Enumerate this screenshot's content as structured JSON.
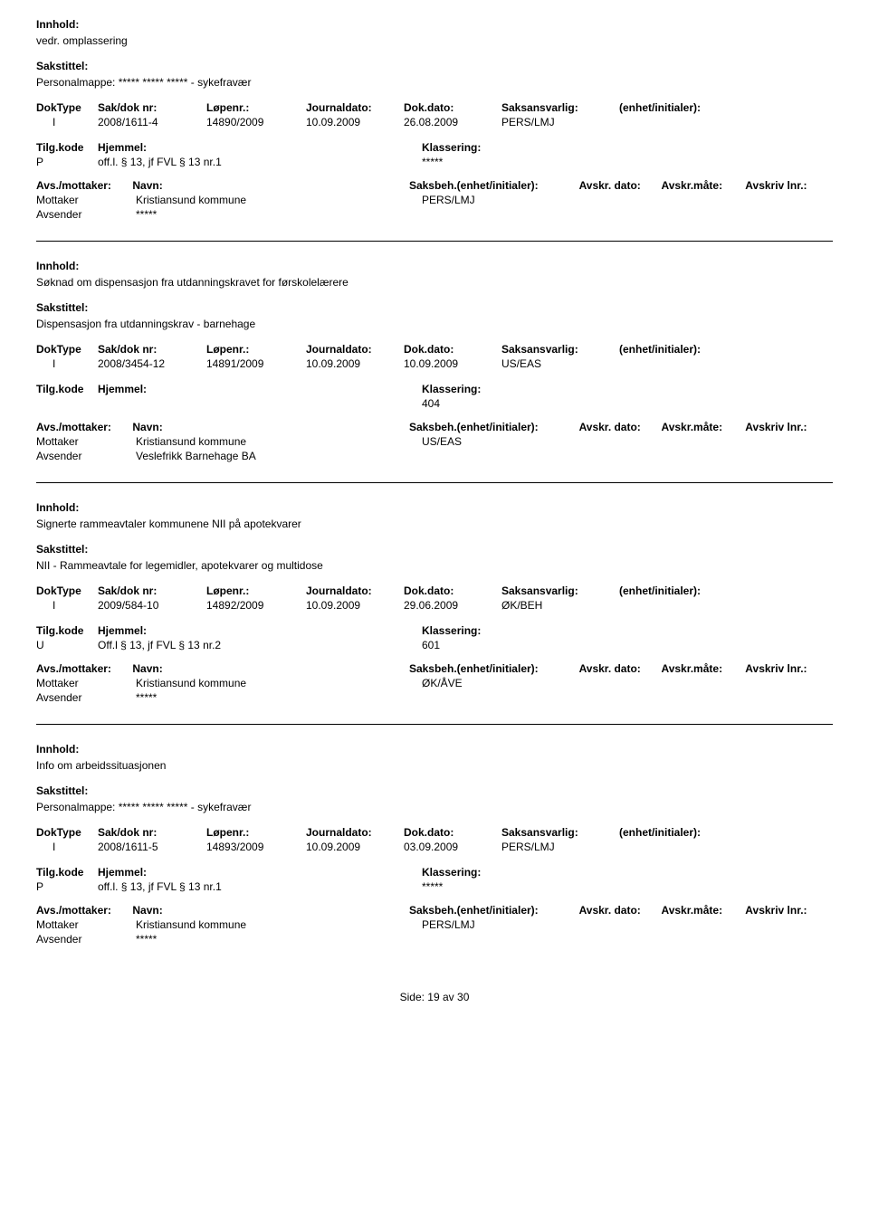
{
  "labels": {
    "innhold": "Innhold:",
    "sakstittel": "Sakstittel:",
    "doktype": "DokType",
    "sakdoknr": "Sak/dok nr:",
    "lopenr": "Løpenr.:",
    "journaldato": "Journaldato:",
    "dokdato": "Dok.dato:",
    "saksansvarlig": "Saksansvarlig:",
    "enhetinit": "(enhet/initialer):",
    "tilgkode": "Tilg.kode",
    "hjemmel": "Hjemmel:",
    "klassering": "Klassering:",
    "avsmottaker": "Avs./mottaker:",
    "navn": "Navn:",
    "saksbeh_enhet": "Saksbeh.(enhet/initialer):",
    "avskrdato": "Avskr. dato:",
    "avskrmate": "Avskr.måte:",
    "avskrivlnr": "Avskriv lnr.:",
    "mottaker": "Mottaker",
    "avsender": "Avsender"
  },
  "records": [
    {
      "innhold": "vedr. omplassering",
      "sakstittel": "Personalmappe: ***** ***** ***** - sykefravær",
      "doktype": "I",
      "sakdok": "2008/1611-4",
      "lopenr": "14890/2009",
      "journaldato": "10.09.2009",
      "dokdato": "26.08.2009",
      "saksansv": "PERS/LMJ",
      "tilgkode": "P",
      "hjemmel": "off.l. § 13, jf FVL § 13 nr.1",
      "klassering": "*****",
      "mottaker_name": "Kristiansund kommune",
      "mottaker_beh": "PERS/LMJ",
      "avsender_name": "*****"
    },
    {
      "innhold": "Søknad om dispensasjon fra utdanningskravet for førskolelærere",
      "sakstittel": "Dispensasjon fra utdanningskrav - barnehage",
      "doktype": "I",
      "sakdok": "2008/3454-12",
      "lopenr": "14891/2009",
      "journaldato": "10.09.2009",
      "dokdato": "10.09.2009",
      "saksansv": "US/EAS",
      "tilgkode": "",
      "hjemmel": "",
      "klassering": "404",
      "mottaker_name": "Kristiansund kommune",
      "mottaker_beh": "US/EAS",
      "avsender_name": "Veslefrikk Barnehage BA"
    },
    {
      "innhold": "Signerte rammeavtaler kommunene NII på apotekvarer",
      "sakstittel": "NII - Rammeavtale for legemidler, apotekvarer og multidose",
      "doktype": "I",
      "sakdok": "2009/584-10",
      "lopenr": "14892/2009",
      "journaldato": "10.09.2009",
      "dokdato": "29.06.2009",
      "saksansv": "ØK/BEH",
      "tilgkode": "U",
      "hjemmel": "Off.l § 13, jf FVL § 13 nr.2",
      "klassering": "601",
      "mottaker_name": "Kristiansund kommune",
      "mottaker_beh": "ØK/ÅVE",
      "avsender_name": "*****"
    },
    {
      "innhold": "Info om arbeidssituasjonen",
      "sakstittel": "Personalmappe: ***** ***** ***** - sykefravær",
      "doktype": "I",
      "sakdok": "2008/1611-5",
      "lopenr": "14893/2009",
      "journaldato": "10.09.2009",
      "dokdato": "03.09.2009",
      "saksansv": "PERS/LMJ",
      "tilgkode": "P",
      "hjemmel": "off.l. § 13, jf FVL § 13 nr.1",
      "klassering": "*****",
      "mottaker_name": "Kristiansund kommune",
      "mottaker_beh": "PERS/LMJ",
      "avsender_name": "*****"
    }
  ],
  "footer": {
    "side": "Side:",
    "page": "19",
    "av": "av",
    "total": "30"
  }
}
